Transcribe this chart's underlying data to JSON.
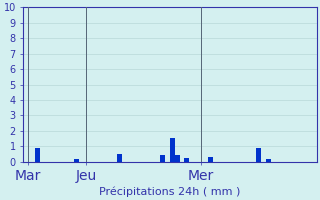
{
  "xlabel": "Précipitations 24h ( mm )",
  "ylim": [
    0,
    10
  ],
  "bar_color": "#0033cc",
  "background_color": "#d4f0f0",
  "grid_color": "#b8d8d8",
  "axis_label_color": "#3333aa",
  "x_tick_labels": [
    "Mar",
    "Jeu",
    "Mer"
  ],
  "x_tick_positions": [
    0,
    24,
    72
  ],
  "vline_positions": [
    0,
    24,
    72
  ],
  "xlim": [
    -2,
    120
  ],
  "yticks": [
    0,
    1,
    2,
    3,
    4,
    5,
    6,
    7,
    8,
    9,
    10
  ],
  "bars": [
    [
      4,
      0.9
    ],
    [
      20,
      0.15
    ],
    [
      38,
      0.5
    ],
    [
      56,
      0.4
    ],
    [
      60,
      1.5
    ],
    [
      62,
      0.4
    ],
    [
      66,
      0.25
    ],
    [
      76,
      0.3
    ],
    [
      96,
      0.9
    ],
    [
      100,
      0.15
    ]
  ]
}
